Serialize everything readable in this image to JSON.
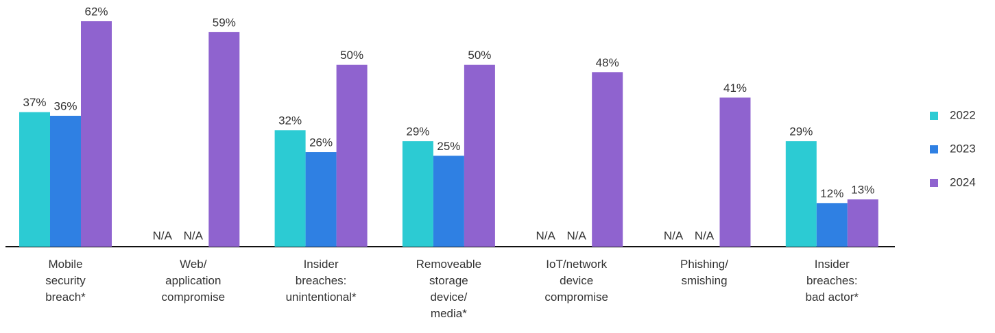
{
  "chart_data": {
    "type": "bar",
    "categories": [
      "Mobile\nsecurity\nbreach*",
      "Web/\napplication\ncompromise",
      "Insider\nbreaches:\nunintentional*",
      "Removeable\nstorage\ndevice/\nmedia*",
      "IoT/network\ndevice\ncompromise",
      "Phishing/\nsmishing",
      "Insider\nbreaches:\nbad actor*"
    ],
    "series": [
      {
        "name": "2022",
        "color": "#2ccbd3",
        "values": [
          37,
          null,
          32,
          29,
          null,
          null,
          29
        ],
        "value_labels": [
          "37%",
          "N/A",
          "32%",
          "29%",
          "N/A",
          "N/A",
          "29%"
        ]
      },
      {
        "name": "2023",
        "color": "#2f80e3",
        "values": [
          36,
          null,
          26,
          25,
          null,
          null,
          12
        ],
        "value_labels": [
          "36%",
          "N/A",
          "26%",
          "25%",
          "N/A",
          "N/A",
          "12%"
        ]
      },
      {
        "name": "2024",
        "color": "#8f63cf",
        "values": [
          62,
          59,
          50,
          50,
          48,
          41,
          13
        ],
        "value_labels": [
          "62%",
          "59%",
          "50%",
          "50%",
          "48%",
          "41%",
          "13%"
        ]
      }
    ],
    "ylim": [
      0,
      62
    ],
    "legend": "right"
  }
}
